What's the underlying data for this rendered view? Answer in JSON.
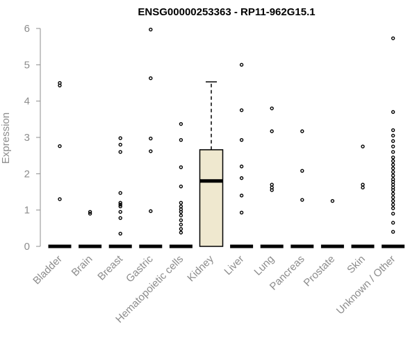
{
  "chart_data": {
    "type": "boxplot",
    "title": "ENSG00000253363 - RP11-962G15.1",
    "ylabel": "Expression",
    "xlabel": "",
    "ylim": [
      0,
      6
    ],
    "yticks": [
      0,
      1,
      2,
      3,
      4,
      5,
      6
    ],
    "grid": false,
    "legend": "none",
    "box_fill": "#efe8cf",
    "categories": [
      "Bladder",
      "Brain",
      "Breast",
      "Gastric",
      "Hematopoietic cells",
      "Kidney",
      "Liver",
      "Lung",
      "Pancreas",
      "Prostate",
      "Skin",
      "Unknown / Other"
    ],
    "boxes": [
      {
        "category": "Bladder",
        "min": 0,
        "q1": 0,
        "median": 0,
        "q3": 0,
        "max": 0,
        "outliers": [
          1.3,
          2.76,
          4.43,
          4.5
        ]
      },
      {
        "category": "Brain",
        "min": 0,
        "q1": 0,
        "median": 0,
        "q3": 0,
        "max": 0,
        "outliers": [
          0.9,
          0.95
        ]
      },
      {
        "category": "Breast",
        "min": 0,
        "q1": 0,
        "median": 0,
        "q3": 0,
        "max": 0,
        "outliers": [
          0.35,
          0.78,
          0.95,
          1.1,
          1.15,
          1.2,
          1.47,
          2.6,
          2.8,
          2.98
        ]
      },
      {
        "category": "Gastric",
        "min": 0,
        "q1": 0,
        "median": 0,
        "q3": 0,
        "max": 0,
        "outliers": [
          0.97,
          2.62,
          2.97,
          4.63,
          5.97
        ]
      },
      {
        "category": "Hematopoietic cells",
        "min": 0,
        "q1": 0,
        "median": 0,
        "q3": 0,
        "max": 0,
        "outliers": [
          0.38,
          0.48,
          0.6,
          0.72,
          0.85,
          0.95,
          1.02,
          1.1,
          1.2,
          1.65,
          2.18,
          2.93,
          3.37
        ]
      },
      {
        "category": "Kidney",
        "min": 0,
        "q1": 0,
        "median": 1.8,
        "q3": 2.66,
        "max": 4.53,
        "outliers": []
      },
      {
        "category": "Liver",
        "min": 0,
        "q1": 0,
        "median": 0,
        "q3": 0,
        "max": 0,
        "outliers": [
          0.93,
          1.4,
          1.88,
          2.2,
          2.93,
          3.75,
          5.0
        ]
      },
      {
        "category": "Lung",
        "min": 0,
        "q1": 0,
        "median": 0,
        "q3": 0,
        "max": 0,
        "outliers": [
          1.55,
          1.62,
          1.7,
          3.17,
          3.8
        ]
      },
      {
        "category": "Pancreas",
        "min": 0,
        "q1": 0,
        "median": 0,
        "q3": 0,
        "max": 0,
        "outliers": [
          1.28,
          2.08,
          3.17
        ]
      },
      {
        "category": "Prostate",
        "min": 0,
        "q1": 0,
        "median": 0,
        "q3": 0,
        "max": 0,
        "outliers": [
          1.25
        ]
      },
      {
        "category": "Skin",
        "min": 0,
        "q1": 0,
        "median": 0,
        "q3": 0,
        "max": 0,
        "outliers": [
          1.62,
          1.7,
          2.75
        ]
      },
      {
        "category": "Unknown / Other",
        "min": 0,
        "q1": 0,
        "median": 0,
        "q3": 0,
        "max": 0,
        "outliers": [
          0.4,
          0.65,
          0.9,
          1.05,
          1.15,
          1.25,
          1.35,
          1.45,
          1.55,
          1.62,
          1.7,
          1.78,
          1.85,
          1.95,
          2.05,
          2.15,
          2.25,
          2.35,
          2.45,
          2.6,
          2.75,
          2.9,
          3.05,
          3.2,
          3.7,
          5.73
        ]
      }
    ]
  }
}
